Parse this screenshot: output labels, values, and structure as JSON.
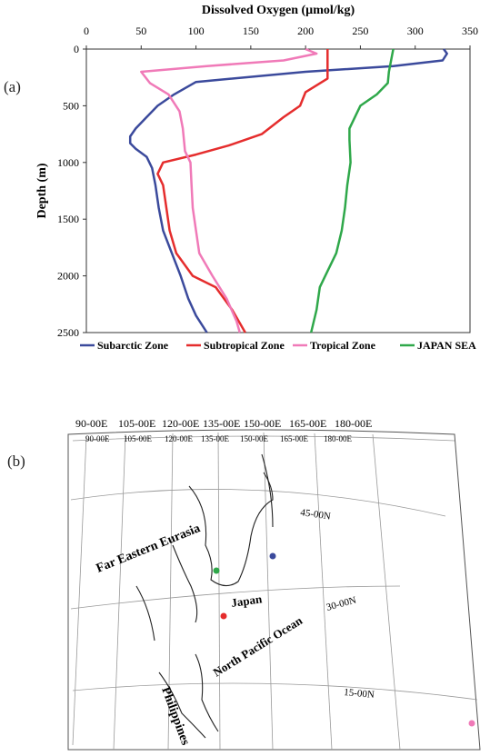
{
  "panels": {
    "a_label": "(a)",
    "b_label": "(b)"
  },
  "chart_data": {
    "type": "line",
    "title": "",
    "xlabel": "Dissolved Oxygen (µmol/kg)",
    "ylabel": "Depth (m)",
    "xlim": [
      0,
      350
    ],
    "ylim": [
      2500,
      0
    ],
    "x_axis_position": "top",
    "y_inverted": true,
    "xticks": [
      0,
      50,
      100,
      150,
      200,
      250,
      300,
      350
    ],
    "yticks": [
      0,
      500,
      1000,
      1500,
      2000,
      2500
    ],
    "grid": false,
    "legend_position": "bottom",
    "series": [
      {
        "name": "Subarctic Zone",
        "color": "#3b4a9c",
        "points": [
          [
            326,
            0
          ],
          [
            329,
            40
          ],
          [
            325,
            100
          ],
          [
            280,
            150
          ],
          [
            200,
            200
          ],
          [
            100,
            290
          ],
          [
            80,
            400
          ],
          [
            65,
            500
          ],
          [
            55,
            600
          ],
          [
            45,
            700
          ],
          [
            40,
            770
          ],
          [
            40,
            830
          ],
          [
            45,
            880
          ],
          [
            55,
            950
          ],
          [
            60,
            1050
          ],
          [
            63,
            1200
          ],
          [
            66,
            1400
          ],
          [
            70,
            1600
          ],
          [
            78,
            1800
          ],
          [
            86,
            2000
          ],
          [
            93,
            2200
          ],
          [
            100,
            2350
          ],
          [
            110,
            2500
          ]
        ]
      },
      {
        "name": "Subtropical Zone",
        "color": "#e52d2d",
        "points": [
          [
            220,
            0
          ],
          [
            220,
            100
          ],
          [
            220,
            200
          ],
          [
            220,
            260
          ],
          [
            200,
            380
          ],
          [
            195,
            500
          ],
          [
            180,
            600
          ],
          [
            160,
            750
          ],
          [
            130,
            850
          ],
          [
            100,
            930
          ],
          [
            70,
            1000
          ],
          [
            65,
            1100
          ],
          [
            70,
            1200
          ],
          [
            73,
            1400
          ],
          [
            76,
            1600
          ],
          [
            82,
            1800
          ],
          [
            97,
            2000
          ],
          [
            118,
            2100
          ],
          [
            133,
            2300
          ],
          [
            145,
            2500
          ]
        ]
      },
      {
        "name": "Tropical Zone",
        "color": "#f07ab8",
        "points": [
          [
            200,
            0
          ],
          [
            210,
            40
          ],
          [
            180,
            100
          ],
          [
            110,
            150
          ],
          [
            50,
            200
          ],
          [
            58,
            300
          ],
          [
            75,
            400
          ],
          [
            85,
            550
          ],
          [
            88,
            700
          ],
          [
            90,
            900
          ],
          [
            95,
            1000
          ],
          [
            96,
            1200
          ],
          [
            97,
            1400
          ],
          [
            100,
            1600
          ],
          [
            103,
            1800
          ],
          [
            115,
            2000
          ],
          [
            128,
            2200
          ],
          [
            137,
            2400
          ],
          [
            140,
            2500
          ]
        ]
      },
      {
        "name": "JAPAN SEA",
        "color": "#2fa84a",
        "points": [
          [
            280,
            0
          ],
          [
            278,
            100
          ],
          [
            276,
            200
          ],
          [
            275,
            300
          ],
          [
            265,
            400
          ],
          [
            250,
            500
          ],
          [
            245,
            600
          ],
          [
            240,
            700
          ],
          [
            240,
            800
          ],
          [
            241,
            1000
          ],
          [
            238,
            1200
          ],
          [
            236,
            1400
          ],
          [
            233,
            1600
          ],
          [
            228,
            1800
          ],
          [
            218,
            2000
          ],
          [
            213,
            2100
          ],
          [
            210,
            2300
          ],
          [
            205,
            2500
          ]
        ]
      }
    ],
    "legend": [
      "Subarctic Zone",
      "Subtropical Zone",
      "Tropical Zone",
      "JAPAN SEA"
    ]
  },
  "map": {
    "longitude_labels_upper": [
      "90-00E",
      "105-00E",
      "120-00E",
      "135-00E",
      "150-00E",
      "165-00E",
      "180-00E"
    ],
    "longitude_labels_lower": [
      "90-00E",
      "105-00E",
      "120-00E",
      "135-00E",
      "150-00E",
      "165-00E",
      "180-00E"
    ],
    "latitude_labels": [
      "45-00N",
      "30-00N",
      "15-00N"
    ],
    "place_labels": {
      "far_eastern_eurasia": "Far Eastern Eurasia",
      "japan": "Japan",
      "north_pacific": "North Pacific Ocean",
      "philippines": "Philippines"
    },
    "stations": [
      {
        "name": "Subarctic Zone",
        "color": "#3b4a9c"
      },
      {
        "name": "Subtropical Zone",
        "color": "#e52d2d"
      },
      {
        "name": "Tropical Zone",
        "color": "#f07ab8"
      },
      {
        "name": "JAPAN SEA",
        "color": "#2fa84a"
      }
    ]
  }
}
